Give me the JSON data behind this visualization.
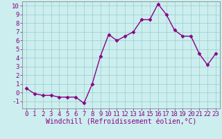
{
  "x": [
    0,
    1,
    2,
    3,
    4,
    5,
    6,
    7,
    8,
    9,
    10,
    11,
    12,
    13,
    14,
    15,
    16,
    17,
    18,
    19,
    20,
    21,
    22,
    23
  ],
  "y": [
    0.5,
    -0.1,
    -0.3,
    -0.3,
    -0.5,
    -0.5,
    -0.5,
    -1.2,
    1.0,
    4.2,
    6.7,
    6.0,
    6.5,
    7.0,
    8.4,
    8.4,
    10.2,
    9.0,
    7.2,
    6.5,
    6.5,
    4.5,
    3.2,
    4.5
  ],
  "line_color": "#880088",
  "marker": "D",
  "marker_size": 2.5,
  "line_width": 1.0,
  "bg_color": "#cceeee",
  "grid_color": "#99cccc",
  "xlabel": "Windchill (Refroidissement éolien,°C)",
  "xlim": [
    -0.5,
    23.5
  ],
  "ylim": [
    -1.8,
    10.5
  ],
  "yticks": [
    -1,
    0,
    1,
    2,
    3,
    4,
    5,
    6,
    7,
    8,
    9,
    10
  ],
  "xticks": [
    0,
    1,
    2,
    3,
    4,
    5,
    6,
    7,
    8,
    9,
    10,
    11,
    12,
    13,
    14,
    15,
    16,
    17,
    18,
    19,
    20,
    21,
    22,
    23
  ],
  "xlabel_fontsize": 7.0,
  "tick_fontsize": 6.5,
  "label_color": "#880088",
  "spine_color": "#888888"
}
